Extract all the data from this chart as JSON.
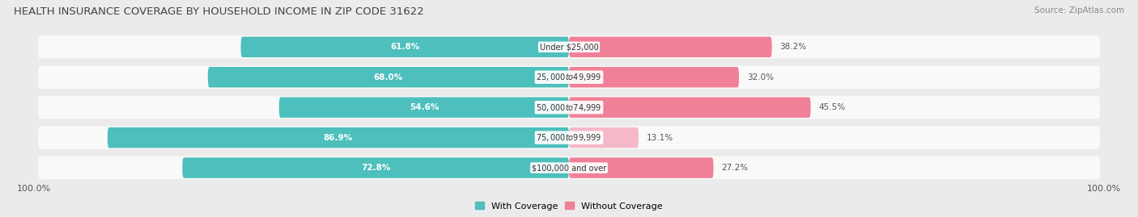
{
  "title": "HEALTH INSURANCE COVERAGE BY HOUSEHOLD INCOME IN ZIP CODE 31622",
  "source": "Source: ZipAtlas.com",
  "categories": [
    "Under $25,000",
    "$25,000 to $49,999",
    "$50,000 to $74,999",
    "$75,000 to $99,999",
    "$100,000 and over"
  ],
  "with_coverage": [
    61.8,
    68.0,
    54.6,
    86.9,
    72.8
  ],
  "without_coverage": [
    38.2,
    32.0,
    45.5,
    13.1,
    27.2
  ],
  "coverage_color": "#4DBFBC",
  "no_coverage_color": "#F08098",
  "no_coverage_color_light": "#F5B8C8",
  "background_color": "#ebebeb",
  "row_bg_color": "#e0e0e0",
  "title_fontsize": 9.5,
  "axis_label_left": "100.0%",
  "axis_label_right": "100.0%",
  "legend_labels": [
    "With Coverage",
    "Without Coverage"
  ],
  "xlim": [
    -100,
    100
  ],
  "bar_height": 0.68
}
